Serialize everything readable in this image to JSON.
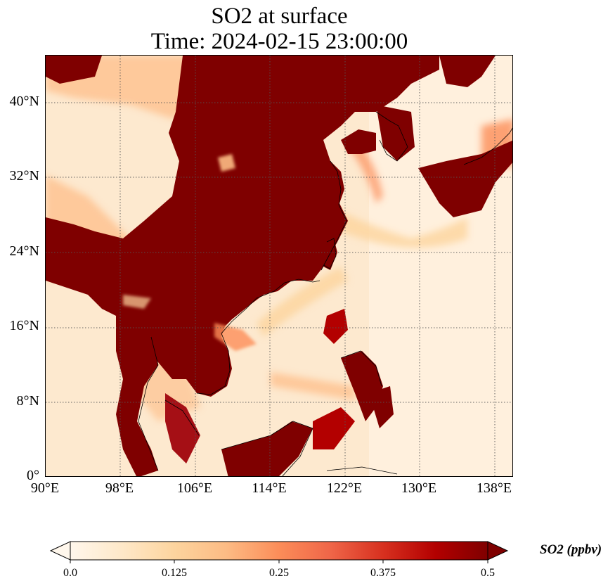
{
  "title": {
    "line1": "SO2 at surface",
    "line2": "Time: 2024-02-15 23:00:00"
  },
  "map": {
    "lon_range": [
      90,
      140
    ],
    "lat_range": [
      0,
      45
    ],
    "lat_ticks": [
      "0°",
      "8°N",
      "16°N",
      "24°N",
      "32°N",
      "40°N"
    ],
    "lon_ticks": [
      "90°E",
      "98°E",
      "106°E",
      "114°E",
      "122°E",
      "130°E",
      "138°E"
    ],
    "gridlines": true,
    "colormap": [
      "#fff7ec",
      "#fee8c8",
      "#fdd49e",
      "#fdbb84",
      "#fc8d59",
      "#ef6548",
      "#d7301f",
      "#b30000",
      "#7f0000"
    ]
  },
  "colorbar": {
    "label": "SO2 (ppbv)",
    "ticks": [
      "0.0",
      "0.125",
      "0.25",
      "0.375",
      "0.5"
    ],
    "extend": "both"
  }
}
